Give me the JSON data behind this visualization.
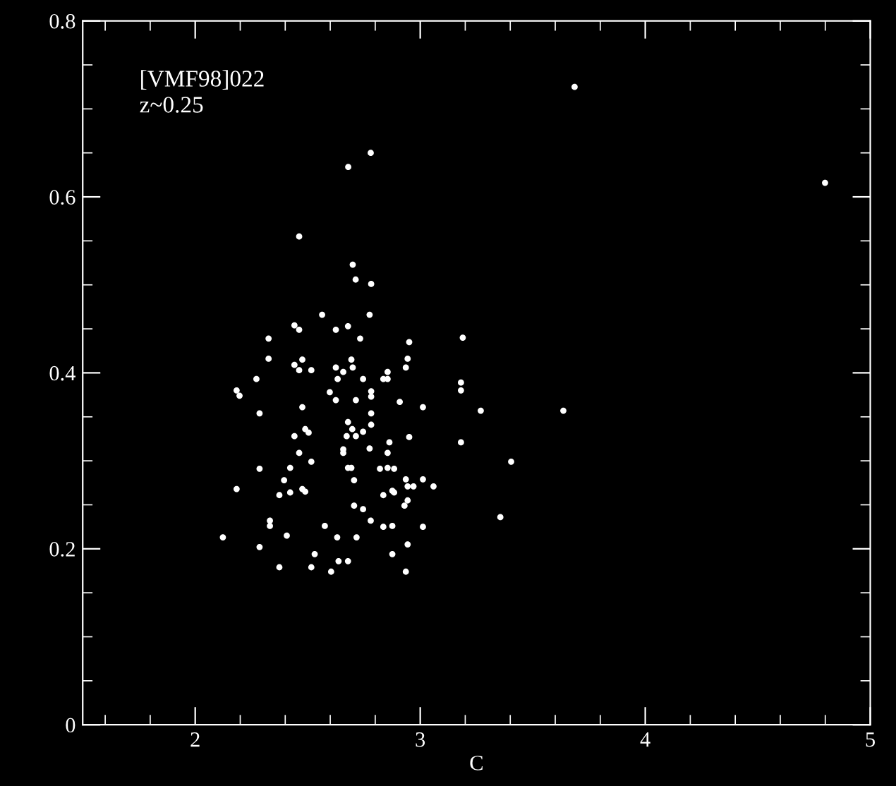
{
  "chart_data": {
    "type": "scatter",
    "xlabel": "C",
    "annotations": [
      "[VMF98]022",
      "z~0.25"
    ],
    "xlim": [
      1.5,
      5
    ],
    "xticks": [
      2,
      3,
      4,
      5
    ],
    "ylim": [
      0,
      0.8
    ],
    "yticks": [
      0,
      0.2,
      0.4,
      0.6,
      0.8
    ],
    "grid": false,
    "marker": "circle",
    "series": [
      {
        "color": "#ffffff",
        "x": [
          2.462,
          2.7,
          2.713,
          2.564,
          2.441,
          2.462,
          2.625,
          2.679,
          2.326,
          2.733,
          2.326,
          2.476,
          2.441,
          2.462,
          2.516,
          2.694,
          2.625,
          2.658,
          2.7,
          2.272,
          2.633,
          2.746,
          2.184,
          2.197,
          2.598,
          2.625,
          2.714,
          2.286,
          2.476,
          2.679,
          2.698,
          2.489,
          2.504,
          2.441,
          2.673,
          2.714,
          2.746,
          2.462,
          2.516,
          2.658,
          2.658,
          2.286,
          2.422,
          2.679,
          2.694,
          2.395,
          2.706,
          2.184,
          2.374,
          2.422,
          2.476,
          2.489,
          2.706,
          2.746,
          2.332,
          2.332,
          2.576,
          2.407,
          2.123,
          2.631,
          2.717,
          2.286,
          2.531,
          2.374,
          2.516,
          2.637,
          2.679,
          2.604,
          2.782,
          2.775,
          2.951,
          3.189,
          2.944,
          2.936,
          2.855,
          2.836,
          2.855,
          2.782,
          2.782,
          3.181,
          3.181,
          2.909,
          3.012,
          3.269,
          3.636,
          2.782,
          2.782,
          2.951,
          2.863,
          3.181,
          2.775,
          2.855,
          3.404,
          2.821,
          2.855,
          2.884,
          2.936,
          3.012,
          2.944,
          2.97,
          3.059,
          2.836,
          2.876,
          2.884,
          2.944,
          2.93,
          3.356,
          2.78,
          2.836,
          2.876,
          3.012,
          2.944,
          2.876,
          2.936,
          2.68,
          2.78,
          3.686,
          4.799
        ],
        "values": [
          0.555,
          0.523,
          0.506,
          0.466,
          0.454,
          0.449,
          0.449,
          0.453,
          0.439,
          0.439,
          0.416,
          0.415,
          0.409,
          0.403,
          0.403,
          0.415,
          0.406,
          0.401,
          0.406,
          0.393,
          0.393,
          0.393,
          0.38,
          0.374,
          0.378,
          0.369,
          0.369,
          0.354,
          0.361,
          0.344,
          0.336,
          0.336,
          0.332,
          0.328,
          0.328,
          0.328,
          0.333,
          0.309,
          0.299,
          0.313,
          0.309,
          0.291,
          0.292,
          0.292,
          0.292,
          0.278,
          0.278,
          0.268,
          0.261,
          0.264,
          0.268,
          0.265,
          0.249,
          0.245,
          0.232,
          0.226,
          0.226,
          0.215,
          0.213,
          0.213,
          0.213,
          0.202,
          0.194,
          0.179,
          0.179,
          0.186,
          0.186,
          0.174,
          0.501,
          0.466,
          0.435,
          0.44,
          0.416,
          0.406,
          0.401,
          0.393,
          0.393,
          0.379,
          0.373,
          0.389,
          0.38,
          0.367,
          0.361,
          0.357,
          0.357,
          0.354,
          0.341,
          0.327,
          0.321,
          0.321,
          0.314,
          0.309,
          0.299,
          0.291,
          0.292,
          0.291,
          0.279,
          0.279,
          0.271,
          0.271,
          0.271,
          0.261,
          0.266,
          0.264,
          0.255,
          0.249,
          0.236,
          0.232,
          0.225,
          0.226,
          0.225,
          0.205,
          0.194,
          0.174,
          0.634,
          0.65,
          0.725,
          0.616
        ]
      }
    ]
  }
}
